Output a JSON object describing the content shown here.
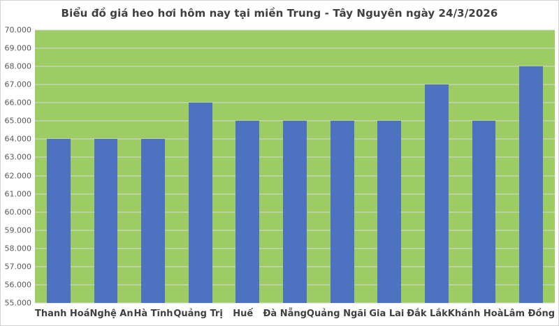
{
  "chart_data": {
    "type": "bar",
    "title": "Biểu đồ giá heo hơi hôm nay tại miền Trung - Tây Nguyên ngày 24/3/2026",
    "categories": [
      "Thanh Hoá",
      "Nghệ An",
      "Hà Tĩnh",
      "Quảng Trị",
      "Huế",
      "Đà Nẵng",
      "Quảng Ngãi",
      "Gia Lai",
      "Đắk Lắk",
      "Khánh Hoà",
      "Lâm Đồng"
    ],
    "values": [
      64000,
      64000,
      64000,
      66000,
      65000,
      65000,
      65000,
      65000,
      67000,
      65000,
      68000
    ],
    "xlabel": "",
    "ylabel": "",
    "ylim": [
      55000,
      70000
    ],
    "ytick_step": 1000,
    "ytick_labels_top_to_bottom": [
      "70.000",
      "69.000",
      "68.000",
      "67.000",
      "66.000",
      "65.000",
      "64.000",
      "63.000",
      "62.000",
      "61.000",
      "60.000",
      "59.000",
      "58.000",
      "57.000",
      "56.000",
      "55.000"
    ],
    "grid": true,
    "legend": "none",
    "colors": {
      "bar": "#4D73C0",
      "plot_background": "#9CCC63",
      "gridline": "#D9D9D9",
      "title_text": "#404040",
      "axis_text": "#595959",
      "category_text": "#404040",
      "canvas_background": "#FFFFFF",
      "border": "#D3D3D3"
    }
  }
}
